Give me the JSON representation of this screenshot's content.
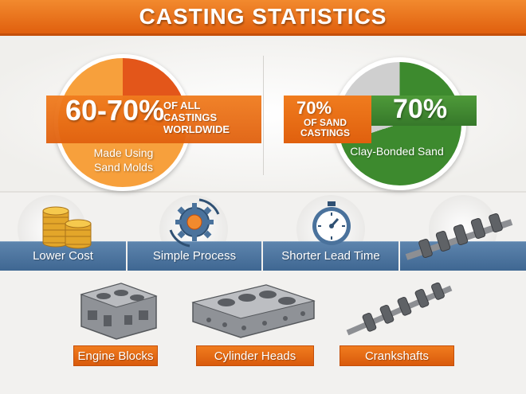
{
  "header": {
    "title": "CASTING STATISTICS"
  },
  "stats": {
    "left": {
      "percent": "60-70%",
      "caption_lines": [
        "OF ALL",
        "CASTINGS",
        "WORLDWIDE"
      ],
      "pie_label_lines": [
        "Made Using",
        "Sand Molds"
      ],
      "colors": {
        "main": "#f7a03c",
        "slice": "#e3561a"
      }
    },
    "right": {
      "percent_small": "70%",
      "caption_lines": [
        "OF SAND",
        "CASTINGS"
      ],
      "percent_big": "70%",
      "pie_label": "Clay-Bonded Sand",
      "colors": {
        "main": "#3d8a2e",
        "rest": "#cfcfcf"
      },
      "share": 0.7
    }
  },
  "benefits": [
    {
      "label": "Lower Cost",
      "icon": "coins-icon"
    },
    {
      "label": "Simple Process",
      "icon": "gears-cycle-icon"
    },
    {
      "label": "Shorter Lead Time",
      "icon": "stopwatch-icon"
    },
    {
      "label": "",
      "icon": "crankshaft-icon"
    }
  ],
  "parts": [
    {
      "label": "Engine Blocks",
      "icon": "engine-block-icon"
    },
    {
      "label": "Cylinder Heads",
      "icon": "cylinder-head-icon"
    },
    {
      "label": "Crankshafts",
      "icon": "crankshaft-icon"
    }
  ],
  "colors": {
    "accent": "#e0600e",
    "blue": "#4a729c",
    "green": "#3d8a2e"
  }
}
